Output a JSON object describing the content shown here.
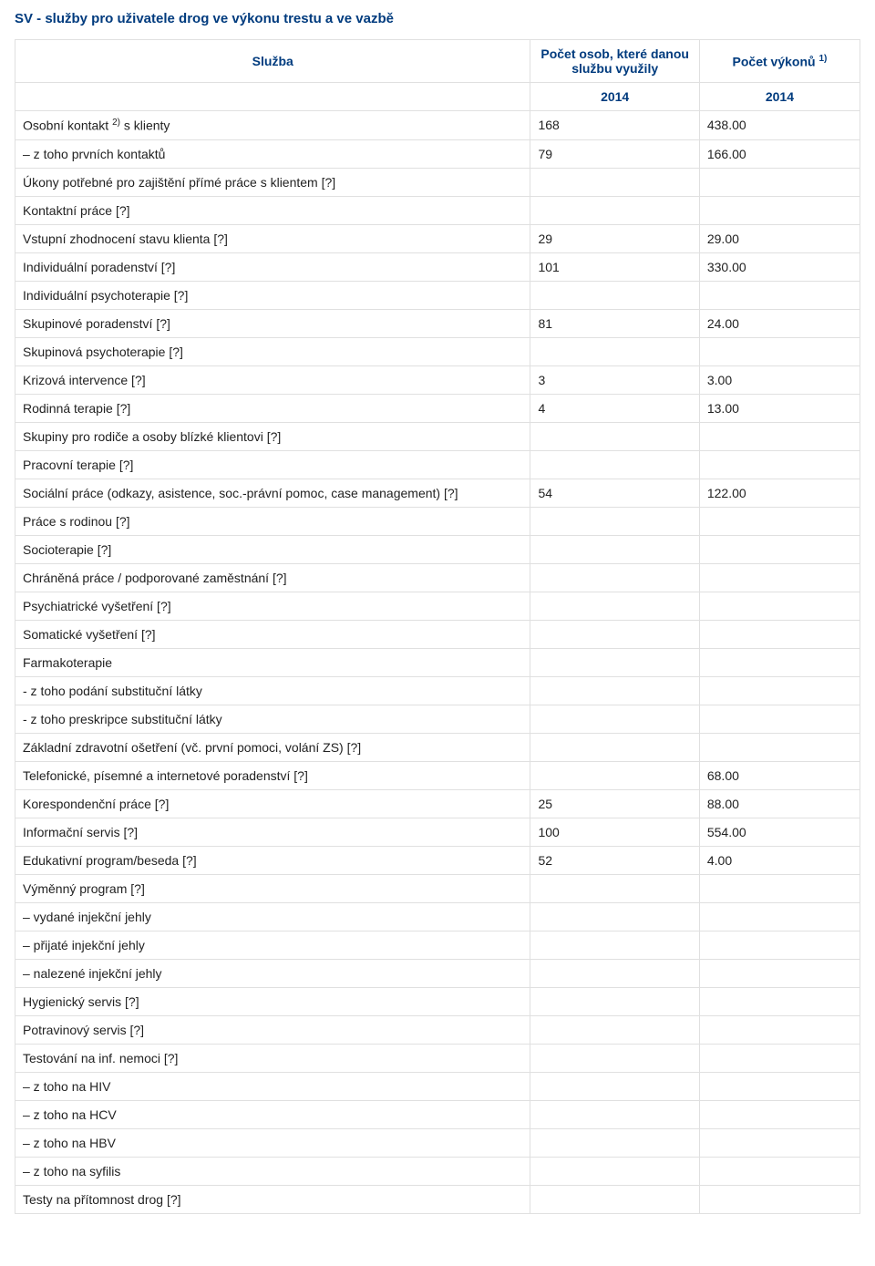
{
  "title": "SV - služby pro uživatele drog ve výkonu trestu a ve vazbě",
  "headers": {
    "service": "Služba",
    "people": "Počet osob, které danou službu využily",
    "performances": "Počet výkonů ",
    "perf_sup": "1)",
    "year_people": "2014",
    "year_perf": "2014"
  },
  "osobni_kontakt_sup": "2)",
  "rows": [
    {
      "label_pre": "Osobní kontakt ",
      "sup": "2)",
      "label_post": " s klienty",
      "people": "168",
      "perf": "438.00"
    },
    {
      "label": "– z toho prvních kontaktů",
      "people": "79",
      "perf": "166.00"
    },
    {
      "label": "Úkony potřebné pro zajištění přímé práce s klientem [?]",
      "people": "",
      "perf": ""
    },
    {
      "label": "Kontaktní práce [?]",
      "people": "",
      "perf": ""
    },
    {
      "label": "Vstupní zhodnocení stavu klienta [?]",
      "people": "29",
      "perf": "29.00"
    },
    {
      "label": "Individuální poradenství [?]",
      "people": "101",
      "perf": "330.00"
    },
    {
      "label": "Individuální psychoterapie [?]",
      "people": "",
      "perf": ""
    },
    {
      "label": "Skupinové poradenství [?]",
      "people": "81",
      "perf": "24.00"
    },
    {
      "label": "Skupinová psychoterapie [?]",
      "people": "",
      "perf": ""
    },
    {
      "label": "Krizová intervence [?]",
      "people": "3",
      "perf": "3.00"
    },
    {
      "label": "Rodinná terapie [?]",
      "people": "4",
      "perf": "13.00"
    },
    {
      "label": "Skupiny pro rodiče a osoby blízké klientovi [?]",
      "people": "",
      "perf": ""
    },
    {
      "label": "Pracovní terapie [?]",
      "people": "",
      "perf": ""
    },
    {
      "label": "Sociální práce (odkazy, asistence, soc.-právní pomoc, case management) [?]",
      "people": "54",
      "perf": "122.00"
    },
    {
      "label": "Práce s rodinou [?]",
      "people": "",
      "perf": ""
    },
    {
      "label": "Socioterapie [?]",
      "people": "",
      "perf": ""
    },
    {
      "label": "Chráněná práce / podporované zaměstnání [?]",
      "people": "",
      "perf": ""
    },
    {
      "label": "Psychiatrické vyšetření [?]",
      "people": "",
      "perf": ""
    },
    {
      "label": "Somatické vyšetření [?]",
      "people": "",
      "perf": ""
    },
    {
      "label": "Farmakoterapie",
      "people": "",
      "perf": ""
    },
    {
      "label": "- z toho podání substituční látky",
      "people": "",
      "perf": ""
    },
    {
      "label": "- z toho preskripce substituční látky",
      "people": "",
      "perf": ""
    },
    {
      "label": "Základní zdravotní ošetření (vč. první pomoci, volání ZS) [?]",
      "people": "",
      "perf": ""
    },
    {
      "label": "Telefonické, písemné a internetové poradenství [?]",
      "people": "",
      "perf": "68.00"
    },
    {
      "label": "Korespondenční práce [?]",
      "people": "25",
      "perf": "88.00"
    },
    {
      "label": "Informační servis [?]",
      "people": "100",
      "perf": "554.00"
    },
    {
      "label": "Edukativní program/beseda [?]",
      "people": "52",
      "perf": "4.00"
    },
    {
      "label": "Výměnný program [?]",
      "people": "",
      "perf": ""
    },
    {
      "label": "– vydané injekční jehly",
      "people": "",
      "perf": ""
    },
    {
      "label": "– přijaté injekční jehly",
      "people": "",
      "perf": ""
    },
    {
      "label": "– nalezené injekční jehly",
      "people": "",
      "perf": ""
    },
    {
      "label": "Hygienický servis [?]",
      "people": "",
      "perf": ""
    },
    {
      "label": "Potravinový servis [?]",
      "people": "",
      "perf": ""
    },
    {
      "label": "Testování na inf. nemoci [?]",
      "people": "",
      "perf": ""
    },
    {
      "label": "– z toho na HIV",
      "people": "",
      "perf": ""
    },
    {
      "label": "– z toho na HCV",
      "people": "",
      "perf": ""
    },
    {
      "label": "– z toho na HBV",
      "people": "",
      "perf": ""
    },
    {
      "label": "– z toho na syfilis",
      "people": "",
      "perf": ""
    },
    {
      "label": "Testy na přítomnost drog [?]",
      "people": "",
      "perf": ""
    }
  ]
}
